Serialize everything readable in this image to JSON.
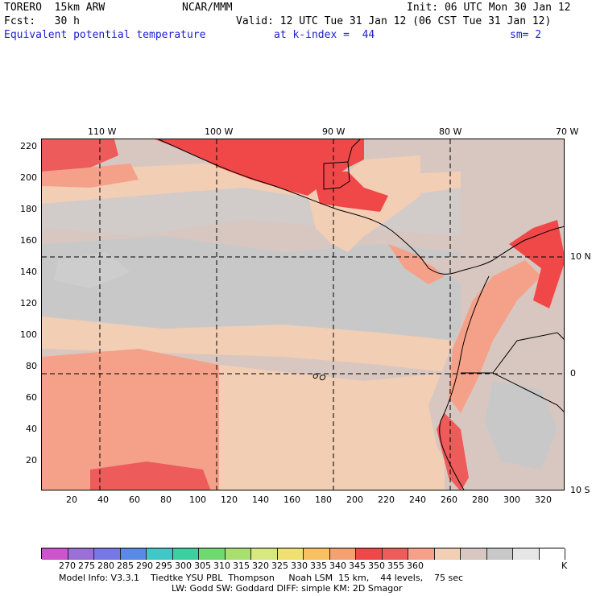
{
  "header": {
    "model": "TORERO  15km ARW",
    "org": "NCAR/MMM",
    "init": "Init: 06 UTC Mon 30 Jan 12",
    "fcst": "Fcst:   30 h",
    "valid": "Valid: 12 UTC Tue 31 Jan 12 (06 CST Tue 31 Jan 12)",
    "field": "Equivalent potential temperature",
    "level": "at k-index =  44",
    "smooth": "sm= 2"
  },
  "axes": {
    "top_lon": [
      "110 W",
      "100 W",
      "90 W",
      "80 W",
      "70 W"
    ],
    "left_y": [
      "220",
      "200",
      "180",
      "160",
      "140",
      "120",
      "100",
      "80",
      "60",
      "40",
      "20"
    ],
    "bottom_x": [
      "20",
      "40",
      "60",
      "80",
      "100",
      "120",
      "140",
      "160",
      "180",
      "200",
      "220",
      "240",
      "260",
      "280",
      "300",
      "320"
    ],
    "right_lat": [
      "10 N",
      "0",
      "10 S"
    ]
  },
  "colorbar": {
    "labels": [
      "270",
      "275",
      "280",
      "285",
      "290",
      "295",
      "300",
      "305",
      "310",
      "315",
      "320",
      "325",
      "330",
      "335",
      "340",
      "345",
      "350",
      "355",
      "360"
    ],
    "unit": "K",
    "colors": [
      "#cc55cc",
      "#9a6fd6",
      "#7777e6",
      "#5a8ae6",
      "#40c8c8",
      "#3ad0a0",
      "#70d870",
      "#a8e070",
      "#d8e880",
      "#f0e070",
      "#f8c060",
      "#f5a070",
      "#f04848",
      "#ee5b5b",
      "#f5a088",
      "#f2ceb5",
      "#d8c7c0",
      "#c8c8c8",
      "#e6e6e6",
      "#ffffff"
    ]
  },
  "footer": {
    "line1": "Model Info: V3.3.1    Tiedtke YSU PBL  Thompson     Noah LSM  15 km,    44 levels,    75 sec",
    "line2": "LW: Godd SW: Goddard DIFF: simple KM: 2D Smagor"
  }
}
